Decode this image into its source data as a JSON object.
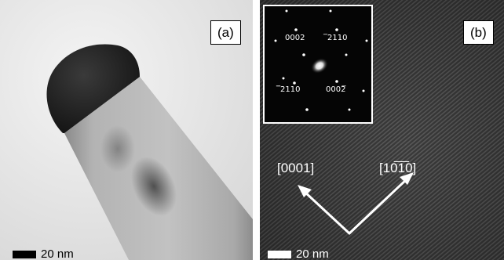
{
  "panel_a": {
    "label": "(a)",
    "scale_bar": "20 nm"
  },
  "panel_b": {
    "label": "(b)",
    "scale_bar": "20 nm",
    "directions": [
      "[0001]",
      "[10̅1̅0]"
    ],
    "diffraction_spots": [
      "0002",
      "̅2110",
      "̅̅2110",
      "0002̅"
    ]
  }
}
